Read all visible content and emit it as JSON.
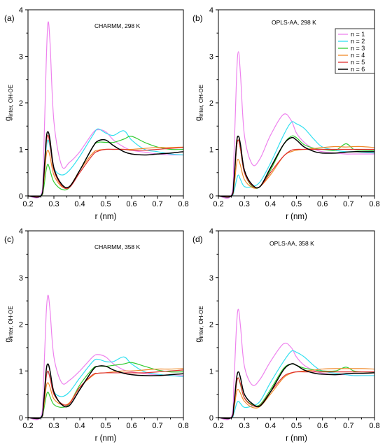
{
  "figure": {
    "xlabel": "r (nm)",
    "ylabel_main": "g",
    "ylabel_sub": "inter, OH-OE",
    "xlim": [
      0.2,
      0.8
    ],
    "ylim": [
      0,
      4
    ],
    "xticks": [
      "0.2",
      "0.3",
      "0.4",
      "0.5",
      "0.6",
      "0.7",
      "0.8"
    ],
    "yticks": [
      "0",
      "1",
      "2",
      "3",
      "4"
    ]
  },
  "legend": {
    "entries": [
      {
        "name": "n = 1",
        "color": "#ee82ee"
      },
      {
        "name": "n = 2",
        "color": "#33e0f0"
      },
      {
        "name": "n = 3",
        "color": "#33cc33"
      },
      {
        "name": "n = 4",
        "color": "#f08a2a"
      },
      {
        "name": "n = 5",
        "color": "#e03030"
      },
      {
        "name": "n = 6",
        "color": "#000000"
      }
    ]
  },
  "chart_data": [
    {
      "type": "line",
      "panel": "(a)",
      "title": "CHARMM, 298 K",
      "x": [
        0.2,
        0.25,
        0.26,
        0.27,
        0.277,
        0.285,
        0.3,
        0.33,
        0.36,
        0.4,
        0.45,
        0.47,
        0.5,
        0.53,
        0.57,
        0.6,
        0.65,
        0.7,
        0.75,
        0.8
      ],
      "series": [
        {
          "name": "n = 1",
          "color": "#ee82ee",
          "values": [
            0,
            0.02,
            0.8,
            2.8,
            3.72,
            3.3,
            1.6,
            0.65,
            0.72,
            0.95,
            1.35,
            1.42,
            1.38,
            1.2,
            1.05,
            0.98,
            0.94,
            0.9,
            0.88,
            0.88
          ]
        },
        {
          "name": "n = 2",
          "color": "#33e0f0",
          "values": [
            0,
            0.01,
            0.3,
            1.0,
            1.2,
            1.05,
            0.6,
            0.45,
            0.55,
            0.85,
            1.3,
            1.44,
            1.35,
            1.3,
            1.4,
            1.2,
            1.0,
            0.95,
            0.9,
            0.88
          ]
        },
        {
          "name": "n = 3",
          "color": "#33cc33",
          "values": [
            0,
            0.0,
            0.15,
            0.55,
            0.68,
            0.55,
            0.3,
            0.14,
            0.18,
            0.55,
            1.05,
            1.15,
            1.15,
            1.15,
            1.22,
            1.28,
            1.15,
            1.05,
            1.0,
            1.0
          ]
        },
        {
          "name": "n = 4",
          "color": "#f08a2a",
          "values": [
            0,
            0.0,
            0.25,
            0.85,
            0.98,
            0.85,
            0.45,
            0.2,
            0.2,
            0.55,
            0.92,
            0.98,
            1.0,
            1.0,
            1.0,
            1.0,
            1.02,
            1.04,
            1.04,
            1.05
          ]
        },
        {
          "name": "n = 5",
          "color": "#e03030",
          "values": [
            0,
            0.0,
            0.3,
            1.1,
            1.3,
            1.1,
            0.55,
            0.22,
            0.18,
            0.5,
            0.88,
            0.96,
            1.0,
            1.0,
            1.0,
            0.98,
            0.98,
            1.0,
            1.02,
            1.04
          ]
        },
        {
          "name": "n = 6",
          "color": "#000000",
          "values": [
            0,
            0.0,
            0.35,
            1.2,
            1.38,
            1.2,
            0.6,
            0.25,
            0.2,
            0.55,
            1.05,
            1.18,
            1.2,
            1.08,
            0.95,
            0.9,
            0.88,
            0.9,
            0.92,
            0.95
          ]
        }
      ]
    },
    {
      "type": "line",
      "panel": "(b)",
      "title": "OPLS-AA, 298 K",
      "x": [
        0.2,
        0.25,
        0.26,
        0.27,
        0.277,
        0.285,
        0.3,
        0.33,
        0.36,
        0.4,
        0.45,
        0.48,
        0.5,
        0.53,
        0.57,
        0.6,
        0.65,
        0.69,
        0.72,
        0.75,
        0.8
      ],
      "series": [
        {
          "name": "n = 1",
          "color": "#ee82ee",
          "values": [
            0,
            0.02,
            0.9,
            2.6,
            3.1,
            2.6,
            1.3,
            0.68,
            0.8,
            1.3,
            1.75,
            1.62,
            1.35,
            1.15,
            1.0,
            0.95,
            0.92,
            0.9,
            0.9,
            0.9,
            0.9
          ]
        },
        {
          "name": "n = 2",
          "color": "#33e0f0",
          "values": [
            0,
            0.0,
            0.1,
            0.35,
            0.45,
            0.35,
            0.2,
            0.2,
            0.3,
            0.7,
            1.3,
            1.58,
            1.55,
            1.45,
            1.2,
            1.05,
            0.98,
            0.95,
            0.95,
            0.94,
            0.92
          ]
        },
        {
          "name": "n = 3",
          "color": "#33cc33",
          "values": [
            0,
            0.0,
            0.3,
            1.05,
            1.2,
            1.0,
            0.5,
            0.2,
            0.2,
            0.55,
            1.1,
            1.28,
            1.25,
            1.1,
            1.02,
            1.0,
            0.98,
            1.12,
            1.0,
            0.98,
            0.97
          ]
        },
        {
          "name": "n = 4",
          "color": "#f08a2a",
          "values": [
            0,
            0.0,
            0.2,
            0.7,
            0.78,
            0.65,
            0.35,
            0.18,
            0.2,
            0.45,
            0.85,
            0.95,
            0.98,
            1.0,
            1.02,
            1.04,
            1.06,
            1.05,
            1.06,
            1.06,
            1.04
          ]
        },
        {
          "name": "n = 5",
          "color": "#e03030",
          "values": [
            0,
            0.0,
            0.3,
            1.05,
            1.2,
            1.0,
            0.5,
            0.22,
            0.2,
            0.5,
            0.85,
            0.98,
            1.0,
            1.0,
            1.0,
            1.0,
            1.0,
            1.0,
            1.0,
            1.0,
            1.0
          ]
        },
        {
          "name": "n = 6",
          "color": "#000000",
          "values": [
            0,
            0.0,
            0.35,
            1.15,
            1.28,
            1.1,
            0.55,
            0.24,
            0.2,
            0.6,
            1.1,
            1.25,
            1.2,
            1.05,
            0.95,
            0.92,
            0.92,
            0.94,
            0.95,
            0.95,
            0.95
          ]
        }
      ]
    },
    {
      "type": "line",
      "panel": "(c)",
      "title": "CHARMM, 358 K",
      "x": [
        0.2,
        0.25,
        0.26,
        0.27,
        0.277,
        0.285,
        0.3,
        0.33,
        0.36,
        0.4,
        0.45,
        0.47,
        0.5,
        0.53,
        0.57,
        0.6,
        0.65,
        0.7,
        0.75,
        0.8
      ],
      "series": [
        {
          "name": "n = 1",
          "color": "#ee82ee",
          "values": [
            0,
            0.02,
            0.8,
            2.2,
            2.62,
            2.3,
            1.3,
            0.75,
            0.8,
            1.0,
            1.3,
            1.35,
            1.3,
            1.15,
            1.02,
            0.98,
            0.94,
            0.92,
            0.9,
            0.9
          ]
        },
        {
          "name": "n = 2",
          "color": "#33e0f0",
          "values": [
            0,
            0.01,
            0.3,
            0.85,
            0.98,
            0.85,
            0.55,
            0.45,
            0.55,
            0.85,
            1.2,
            1.25,
            1.2,
            1.2,
            1.3,
            1.15,
            0.98,
            0.93,
            0.9,
            0.88
          ]
        },
        {
          "name": "n = 3",
          "color": "#33cc33",
          "values": [
            0,
            0.0,
            0.15,
            0.45,
            0.55,
            0.45,
            0.28,
            0.22,
            0.3,
            0.7,
            1.05,
            1.1,
            1.1,
            1.12,
            1.15,
            1.18,
            1.1,
            1.02,
            0.98,
            0.98
          ]
        },
        {
          "name": "n = 4",
          "color": "#f08a2a",
          "values": [
            0,
            0.0,
            0.2,
            0.65,
            0.75,
            0.65,
            0.4,
            0.28,
            0.32,
            0.65,
            0.9,
            0.95,
            0.96,
            0.98,
            1.0,
            1.0,
            1.02,
            1.04,
            1.04,
            1.05
          ]
        },
        {
          "name": "n = 5",
          "color": "#e03030",
          "values": [
            0,
            0.0,
            0.25,
            0.85,
            1.0,
            0.85,
            0.5,
            0.3,
            0.3,
            0.65,
            0.92,
            0.95,
            0.96,
            0.96,
            0.96,
            0.96,
            0.96,
            0.98,
            1.0,
            1.02
          ]
        },
        {
          "name": "n = 6",
          "color": "#000000",
          "values": [
            0,
            0.0,
            0.3,
            1.0,
            1.15,
            1.0,
            0.55,
            0.28,
            0.26,
            0.6,
            1.02,
            1.1,
            1.1,
            1.02,
            0.95,
            0.92,
            0.9,
            0.9,
            0.92,
            0.94
          ]
        }
      ]
    },
    {
      "type": "line",
      "panel": "(d)",
      "title": "OPLS-AA, 358 K",
      "x": [
        0.2,
        0.25,
        0.26,
        0.27,
        0.277,
        0.285,
        0.3,
        0.33,
        0.36,
        0.4,
        0.45,
        0.48,
        0.5,
        0.53,
        0.57,
        0.6,
        0.65,
        0.69,
        0.72,
        0.75,
        0.8
      ],
      "series": [
        {
          "name": "n = 1",
          "color": "#ee82ee",
          "values": [
            0,
            0.02,
            0.8,
            2.0,
            2.32,
            1.95,
            1.1,
            0.7,
            0.82,
            1.2,
            1.58,
            1.5,
            1.3,
            1.12,
            1.0,
            0.95,
            0.92,
            0.92,
            0.9,
            0.9,
            0.9
          ]
        },
        {
          "name": "n = 2",
          "color": "#33e0f0",
          "values": [
            0,
            0.0,
            0.1,
            0.3,
            0.35,
            0.3,
            0.22,
            0.25,
            0.35,
            0.75,
            1.2,
            1.42,
            1.4,
            1.3,
            1.1,
            1.0,
            0.95,
            0.92,
            0.9,
            0.9,
            0.9
          ]
        },
        {
          "name": "n = 3",
          "color": "#33cc33",
          "values": [
            0,
            0.0,
            0.25,
            0.75,
            0.85,
            0.7,
            0.42,
            0.28,
            0.28,
            0.6,
            1.05,
            1.15,
            1.12,
            1.06,
            1.02,
            1.0,
            1.0,
            1.08,
            1.0,
            0.98,
            0.98
          ]
        },
        {
          "name": "n = 4",
          "color": "#f08a2a",
          "values": [
            0,
            0.0,
            0.2,
            0.55,
            0.6,
            0.52,
            0.35,
            0.22,
            0.24,
            0.5,
            0.85,
            0.95,
            0.98,
            1.0,
            1.02,
            1.04,
            1.05,
            1.05,
            1.05,
            1.05,
            1.04
          ]
        },
        {
          "name": "n = 5",
          "color": "#e03030",
          "values": [
            0,
            0.0,
            0.25,
            0.75,
            0.85,
            0.72,
            0.42,
            0.26,
            0.26,
            0.55,
            0.88,
            0.96,
            0.98,
            0.98,
            0.98,
            0.98,
            0.98,
            0.98,
            0.98,
            0.98,
            0.98
          ]
        },
        {
          "name": "n = 6",
          "color": "#000000",
          "values": [
            0,
            0.0,
            0.3,
            0.85,
            0.98,
            0.85,
            0.5,
            0.3,
            0.25,
            0.55,
            1.02,
            1.15,
            1.12,
            1.02,
            0.95,
            0.93,
            0.92,
            0.94,
            0.95,
            0.95,
            0.96
          ]
        }
      ]
    }
  ]
}
